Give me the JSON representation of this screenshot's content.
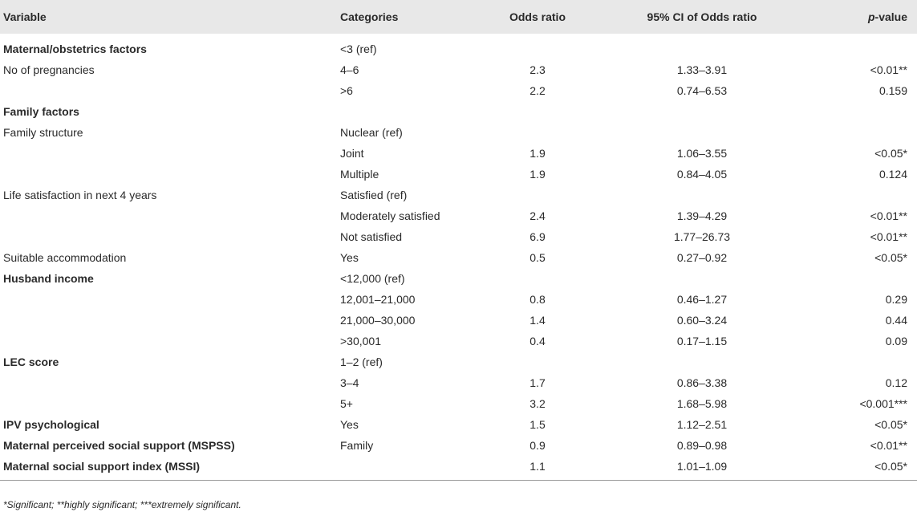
{
  "table": {
    "headers": {
      "variable": "Variable",
      "categories": "Categories",
      "odds_ratio": "Odds ratio",
      "ci": "95% CI of Odds ratio",
      "p_italic": "p",
      "p_rest": "-value"
    },
    "rows": [
      {
        "variable": "Maternal/obstetrics factors",
        "bold": true,
        "category": "<3 (ref)",
        "or": "",
        "ci": "",
        "p": ""
      },
      {
        "variable": "No of pregnancies",
        "bold": false,
        "category": "4–6",
        "or": "2.3",
        "ci": "1.33–3.91",
        "p": "<0.01**"
      },
      {
        "variable": "",
        "bold": false,
        "category": ">6",
        "or": "2.2",
        "ci": "0.74–6.53",
        "p": "0.159"
      },
      {
        "variable": "Family factors",
        "bold": true,
        "category": "",
        "or": "",
        "ci": "",
        "p": ""
      },
      {
        "variable": "Family structure",
        "bold": false,
        "category": "Nuclear (ref)",
        "or": "",
        "ci": "",
        "p": ""
      },
      {
        "variable": "",
        "bold": false,
        "category": "Joint",
        "or": "1.9",
        "ci": "1.06–3.55",
        "p": "<0.05*"
      },
      {
        "variable": "",
        "bold": false,
        "category": "Multiple",
        "or": "1.9",
        "ci": "0.84–4.05",
        "p": "0.124"
      },
      {
        "variable": "Life satisfaction in next 4 years",
        "bold": false,
        "category": "Satisfied (ref)",
        "or": "",
        "ci": "",
        "p": ""
      },
      {
        "variable": "",
        "bold": false,
        "category": "Moderately satisfied",
        "or": "2.4",
        "ci": "1.39–4.29",
        "p": "<0.01**"
      },
      {
        "variable": "",
        "bold": false,
        "category": "Not satisfied",
        "or": "6.9",
        "ci": "1.77–26.73",
        "p": "<0.01**"
      },
      {
        "variable": "Suitable accommodation",
        "bold": false,
        "category": "Yes",
        "or": "0.5",
        "ci": "0.27–0.92",
        "p": "<0.05*"
      },
      {
        "variable": "Husband income",
        "bold": true,
        "category": "<12,000 (ref)",
        "or": "",
        "ci": "",
        "p": ""
      },
      {
        "variable": "",
        "bold": false,
        "category": "12,001–21,000",
        "or": "0.8",
        "ci": "0.46–1.27",
        "p": "0.29"
      },
      {
        "variable": "",
        "bold": false,
        "category": "21,000–30,000",
        "or": "1.4",
        "ci": "0.60–3.24",
        "p": "0.44"
      },
      {
        "variable": "",
        "bold": false,
        "category": ">30,001",
        "or": "0.4",
        "ci": "0.17–1.15",
        "p": "0.09"
      },
      {
        "variable": "LEC score",
        "bold": true,
        "category": "1–2 (ref)",
        "or": "",
        "ci": "",
        "p": ""
      },
      {
        "variable": "",
        "bold": false,
        "category": "3–4",
        "or": "1.7",
        "ci": "0.86–3.38",
        "p": "0.12"
      },
      {
        "variable": "",
        "bold": false,
        "category": "5+",
        "or": "3.2",
        "ci": "1.68–5.98",
        "p": "<0.001***"
      },
      {
        "variable": "IPV psychological",
        "bold": true,
        "category": "Yes",
        "or": "1.5",
        "ci": "1.12–2.51",
        "p": "<0.05*"
      },
      {
        "variable": "Maternal perceived social support (MSPSS)",
        "bold": true,
        "category": "Family",
        "or": "0.9",
        "ci": "0.89–0.98",
        "p": "<0.01**"
      },
      {
        "variable": "Maternal social support index (MSSI)",
        "bold": true,
        "category": "",
        "or": "1.1",
        "ci": "1.01–1.09",
        "p": "<0.05*"
      }
    ]
  },
  "footnote": "*Significant; **highly significant; ***extremely significant."
}
